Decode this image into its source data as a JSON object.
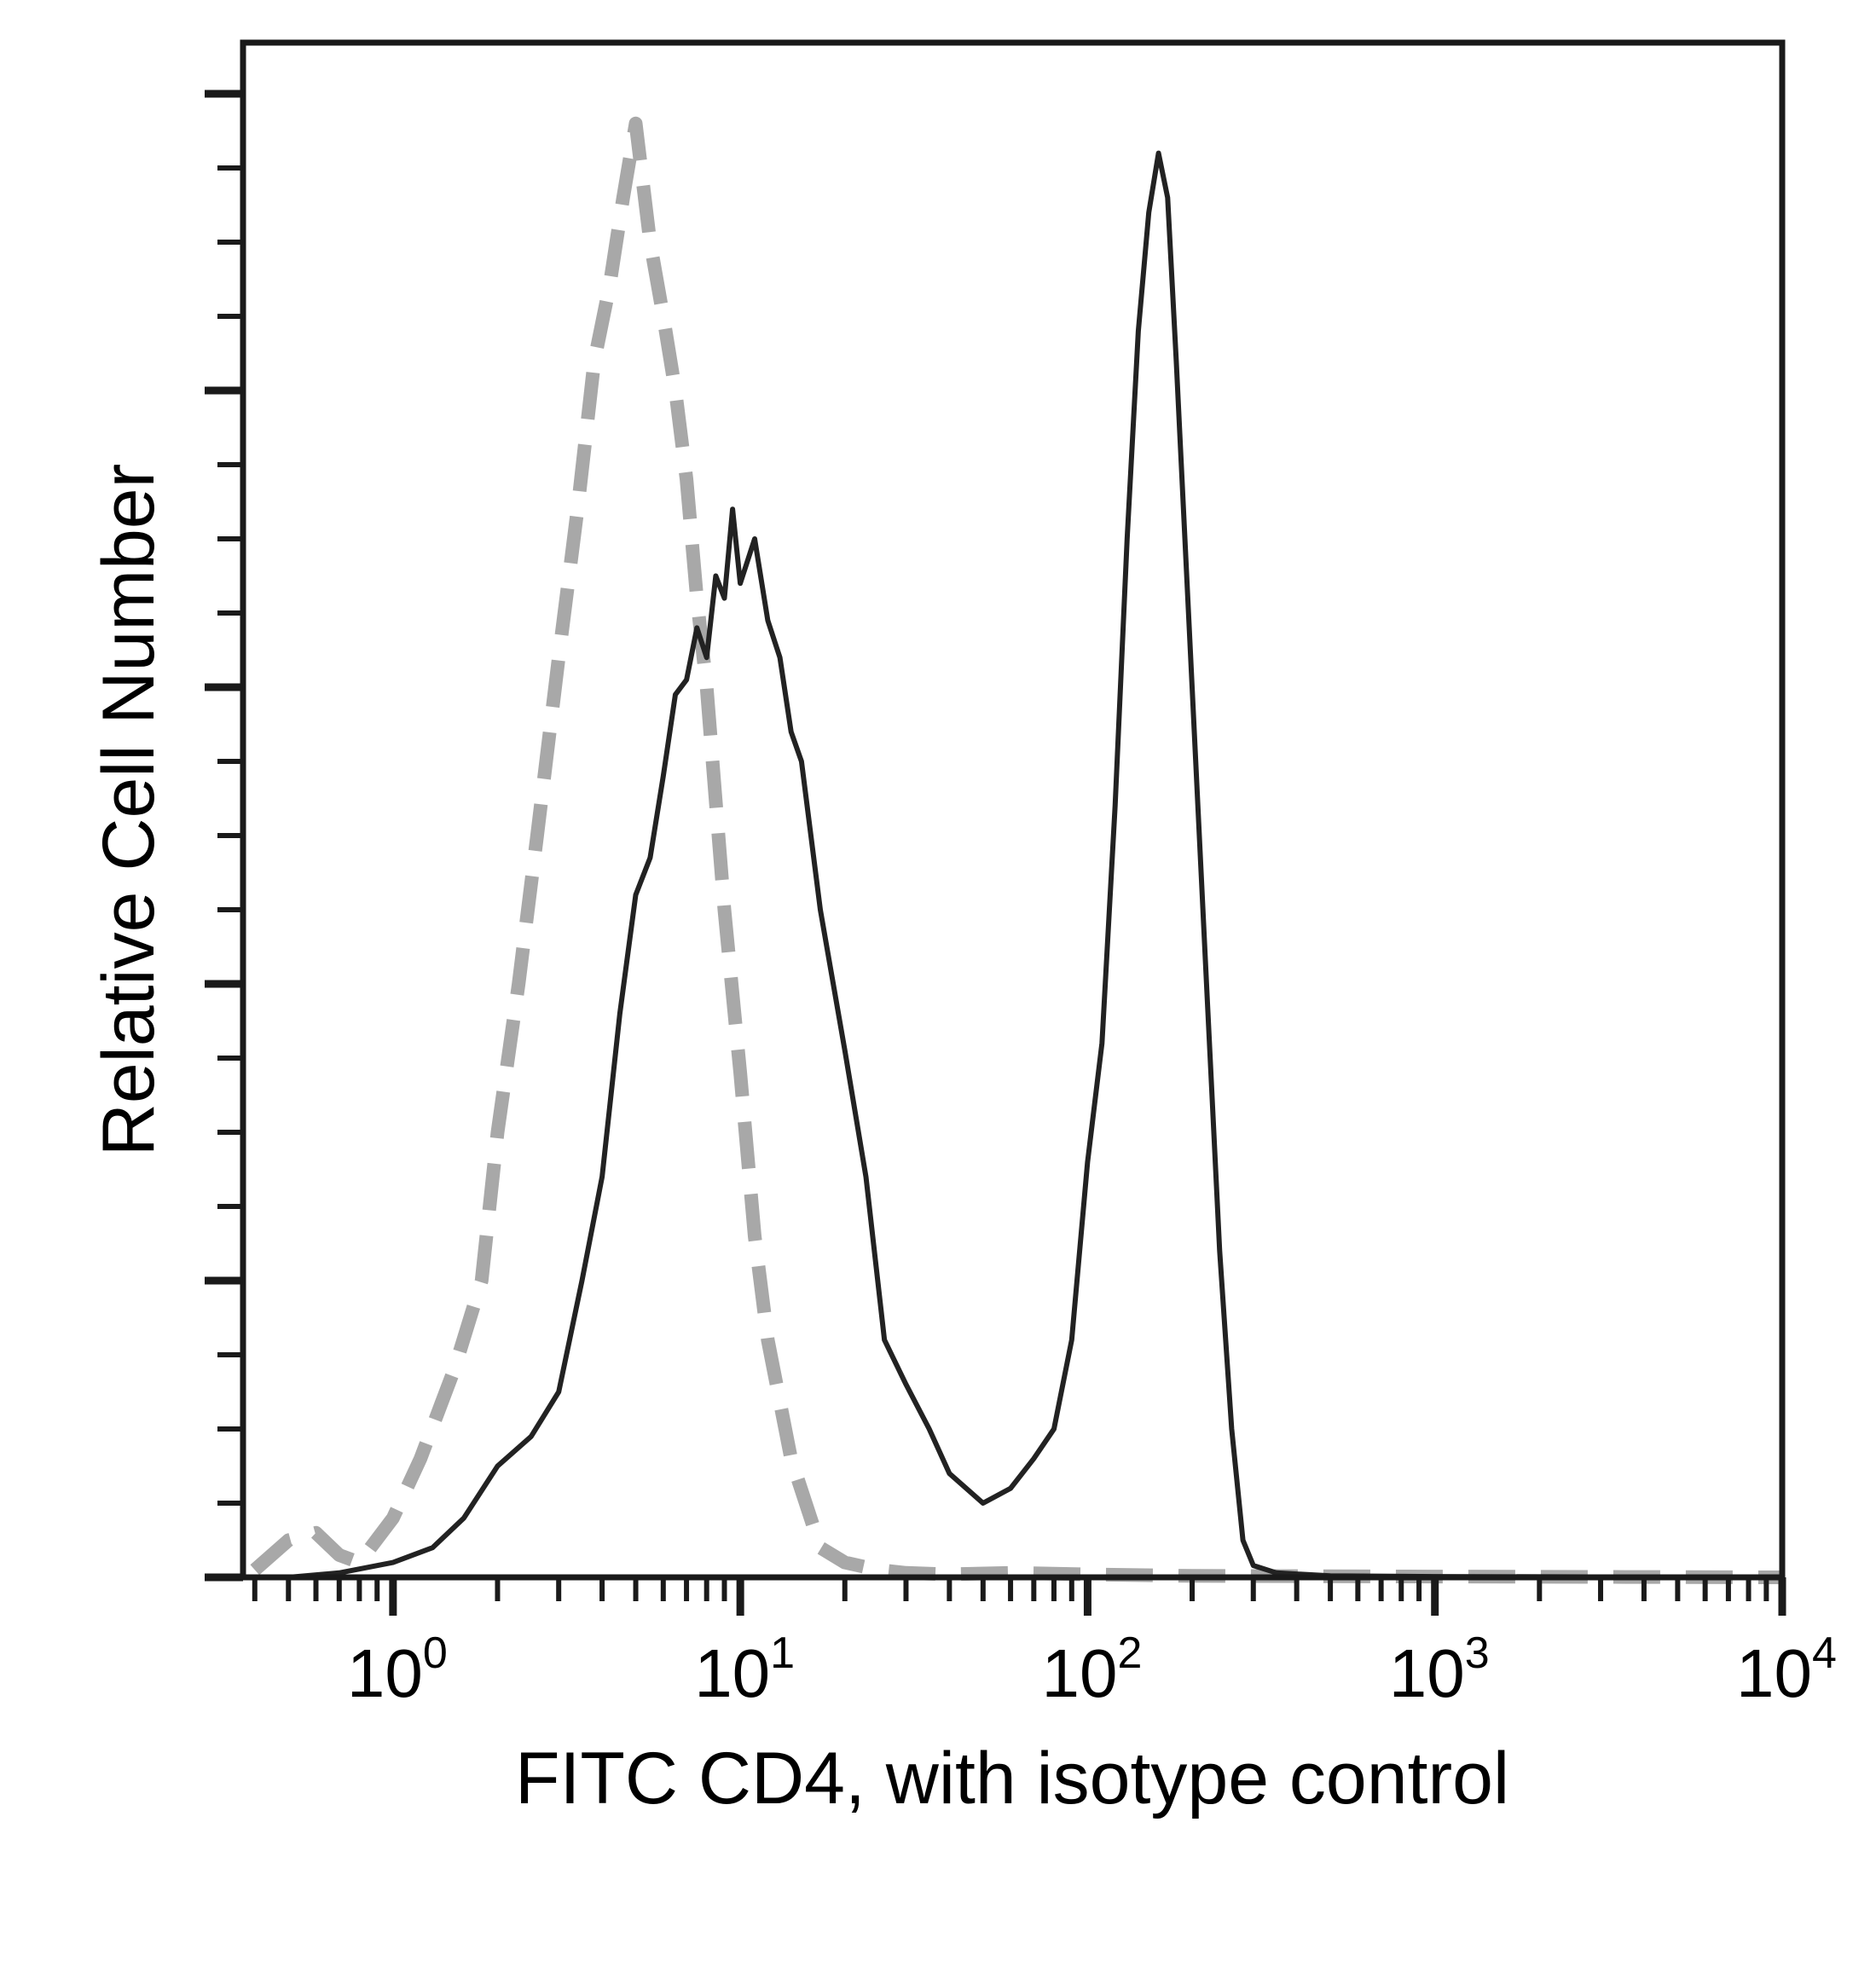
{
  "chart_data": {
    "type": "line",
    "title": "",
    "xlabel": "FITC CD4, with isotype control",
    "ylabel": "Relative Cell Number",
    "x_scale": "log",
    "xlim": [
      0.37,
      10000
    ],
    "ylim": [
      0,
      100
    ],
    "x_ticks": [
      {
        "base": "10",
        "exp": "0",
        "value": 1
      },
      {
        "base": "10",
        "exp": "1",
        "value": 10
      },
      {
        "base": "10",
        "exp": "2",
        "value": 100
      },
      {
        "base": "10",
        "exp": "3",
        "value": 1000
      },
      {
        "base": "10",
        "exp": "4",
        "value": 10000
      }
    ],
    "y_ticks_labeled": false,
    "grid": false,
    "legend": "none",
    "series": [
      {
        "style": "dashed",
        "color": "#a8a8a8",
        "x": [
          0.4,
          0.5,
          0.6,
          0.7,
          0.8,
          1.0,
          1.2,
          1.5,
          1.8,
          2.0,
          2.3,
          2.6,
          3.0,
          3.4,
          3.8,
          4.2,
          4.6,
          5.0,
          5.5,
          6.0,
          6.5,
          7.0,
          7.5,
          8.0,
          9.0,
          10.0,
          11.0,
          12.0,
          14.0,
          17.0,
          20.0,
          25.0,
          30.0,
          40.0,
          60.0,
          100.0,
          200.0,
          1000.0,
          10000.0
        ],
        "y": [
          0.5,
          2.5,
          3.0,
          1.5,
          1.0,
          4.0,
          8.0,
          14.0,
          20.0,
          30.0,
          40.0,
          50.0,
          62.0,
          72.0,
          82.0,
          87.0,
          93.0,
          98.0,
          90.0,
          85.0,
          80.0,
          74.0,
          66.0,
          60.0,
          45.0,
          34.0,
          23.0,
          16.0,
          8.0,
          2.0,
          1.0,
          0.5,
          0.3,
          0.2,
          0.3,
          0.2,
          0.1,
          0.05,
          0.0
        ]
      },
      {
        "style": "solid",
        "color": "#222222",
        "x": [
          0.5,
          0.7,
          1.0,
          1.3,
          1.6,
          2.0,
          2.5,
          3.0,
          3.5,
          4.0,
          4.5,
          5.0,
          5.5,
          6.0,
          6.5,
          7.0,
          7.5,
          8.0,
          8.5,
          9.0,
          9.5,
          10.0,
          11.0,
          12.0,
          13.0,
          14.0,
          15.0,
          17.0,
          20.0,
          23.0,
          26.0,
          30.0,
          35.0,
          40.0,
          50.0,
          60.0,
          70.0,
          80.0,
          90.0,
          100.0,
          110.0,
          120.0,
          130.0,
          140.0,
          150.0,
          160.0,
          170.0,
          180.0,
          200.0,
          220.0,
          240.0,
          260.0,
          280.0,
          300.0,
          350.0,
          500.0,
          1000.0,
          10000.0
        ],
        "y": [
          0.0,
          0.3,
          1.0,
          2.0,
          4.0,
          7.5,
          9.5,
          12.5,
          20.0,
          27.0,
          38.0,
          46.0,
          48.5,
          54.0,
          59.5,
          60.5,
          64.0,
          62.0,
          67.5,
          66.0,
          72.0,
          67.0,
          70.0,
          64.5,
          62.0,
          57.0,
          55.0,
          45.0,
          35.5,
          27.0,
          16.0,
          13.0,
          10.0,
          7.0,
          5.0,
          6.0,
          8.0,
          10.0,
          16.0,
          28.0,
          36.0,
          52.0,
          70.0,
          84.0,
          92.0,
          96.0,
          93.0,
          82.0,
          60.0,
          40.0,
          22.0,
          10.0,
          2.5,
          0.8,
          0.3,
          0.1,
          0.05,
          0.0
        ]
      }
    ]
  }
}
